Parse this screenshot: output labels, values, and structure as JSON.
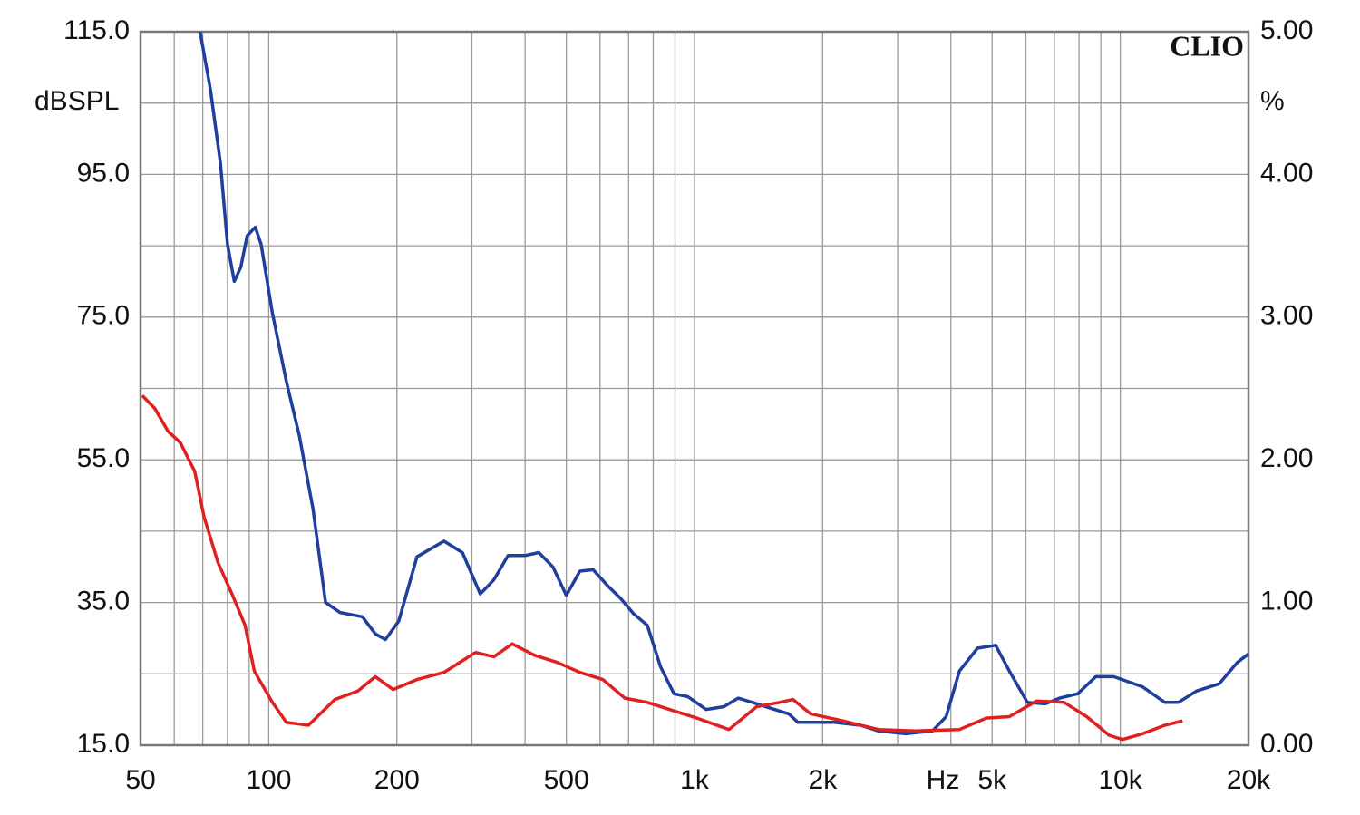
{
  "chart_data": {
    "type": "line",
    "logo": "CLIO",
    "y_label": "dBSPL",
    "y2_label": "%",
    "x_label": "Hz",
    "xscale": "log",
    "grid": true,
    "xlim": [
      50,
      20000
    ],
    "xticks": [
      50,
      100,
      200,
      500,
      {
        "value": 1000,
        "label": "1k"
      },
      {
        "value": 2000,
        "label": "2k"
      },
      {
        "value": 5000,
        "label": "5k"
      },
      {
        "value": 10000,
        "label": "10k"
      },
      {
        "value": 20000,
        "label": "20k"
      }
    ],
    "xminorticks": [
      60,
      70,
      80,
      90,
      300,
      400,
      600,
      700,
      800,
      900,
      3000,
      4000,
      6000,
      7000,
      8000,
      9000
    ],
    "ylim": [
      15,
      115
    ],
    "yticks": [
      {
        "value": 115,
        "label": "115.0"
      },
      {
        "value": 95,
        "label": "95.0"
      },
      {
        "value": 75,
        "label": "75.0"
      },
      {
        "value": 55,
        "label": "55.0"
      },
      {
        "value": 35,
        "label": "35.0"
      },
      {
        "value": 15,
        "label": "15.0"
      }
    ],
    "yminorticks": [
      105,
      85,
      65,
      45,
      25
    ],
    "y2lim": [
      0,
      5
    ],
    "y2ticks": [
      {
        "value": 5,
        "label": "5.00"
      },
      {
        "value": 4,
        "label": "4.00"
      },
      {
        "value": 3,
        "label": "3.00"
      },
      {
        "value": 2,
        "label": "2.00"
      },
      {
        "value": 1,
        "label": "1.00"
      },
      {
        "value": 0,
        "label": "0.00"
      }
    ],
    "series": [
      {
        "color": "#1f3f9e",
        "axis": "y2",
        "x": [
          69,
          73,
          77,
          80,
          83,
          86,
          89,
          93,
          96,
          102,
          110,
          118,
          127,
          136,
          147,
          166,
          178,
          188,
          202,
          223,
          258,
          285,
          314,
          338,
          365,
          401,
          431,
          465,
          500,
          538,
          578,
          624,
          670,
          720,
          775,
          832,
          895,
          965,
          1065,
          1172,
          1266,
          1368,
          1505,
          1664,
          1750,
          2128,
          2454,
          2706,
          3134,
          3620,
          3898,
          4190,
          4620,
          5094,
          5490,
          6050,
          6670,
          7200,
          7940,
          8760,
          9650,
          11270,
          12720,
          13690,
          15110,
          17070,
          18830,
          20000
        ],
        "values": [
          5.0,
          4.59,
          4.08,
          3.51,
          3.25,
          3.35,
          3.57,
          3.63,
          3.51,
          3.03,
          2.55,
          2.17,
          1.66,
          1.0,
          0.93,
          0.9,
          0.78,
          0.74,
          0.87,
          1.32,
          1.43,
          1.35,
          1.06,
          1.16,
          1.33,
          1.33,
          1.35,
          1.25,
          1.05,
          1.22,
          1.23,
          1.12,
          1.03,
          0.92,
          0.84,
          0.55,
          0.36,
          0.34,
          0.25,
          0.27,
          0.33,
          0.3,
          0.26,
          0.22,
          0.16,
          0.16,
          0.14,
          0.1,
          0.08,
          0.1,
          0.2,
          0.52,
          0.68,
          0.7,
          0.52,
          0.3,
          0.29,
          0.33,
          0.36,
          0.48,
          0.48,
          0.41,
          0.3,
          0.3,
          0.38,
          0.43,
          0.58,
          0.64
        ]
      },
      {
        "color": "#e02020",
        "axis": "y2",
        "x": [
          50.5,
          54,
          58,
          62,
          67,
          70.5,
          76,
          82,
          88,
          92.5,
          102,
          110,
          124,
          143,
          162,
          178,
          196,
          223,
          258,
          306,
          338,
          373,
          421,
          476,
          538,
          609,
          686,
          775,
          895,
          1013,
          1205,
          1400,
          1583,
          1703,
          1874,
          2233,
          2706,
          3285,
          4190,
          4844,
          5490,
          6360,
          7380,
          8340,
          9410,
          10120,
          11270,
          12720,
          14000
        ],
        "values": [
          2.45,
          2.36,
          2.2,
          2.12,
          1.92,
          1.6,
          1.28,
          1.06,
          0.84,
          0.52,
          0.3,
          0.16,
          0.14,
          0.32,
          0.38,
          0.48,
          0.39,
          0.46,
          0.51,
          0.65,
          0.62,
          0.71,
          0.63,
          0.58,
          0.51,
          0.46,
          0.33,
          0.3,
          0.24,
          0.19,
          0.11,
          0.27,
          0.3,
          0.32,
          0.22,
          0.17,
          0.11,
          0.1,
          0.11,
          0.19,
          0.2,
          0.31,
          0.3,
          0.2,
          0.07,
          0.04,
          0.08,
          0.14,
          0.17
        ]
      }
    ]
  }
}
